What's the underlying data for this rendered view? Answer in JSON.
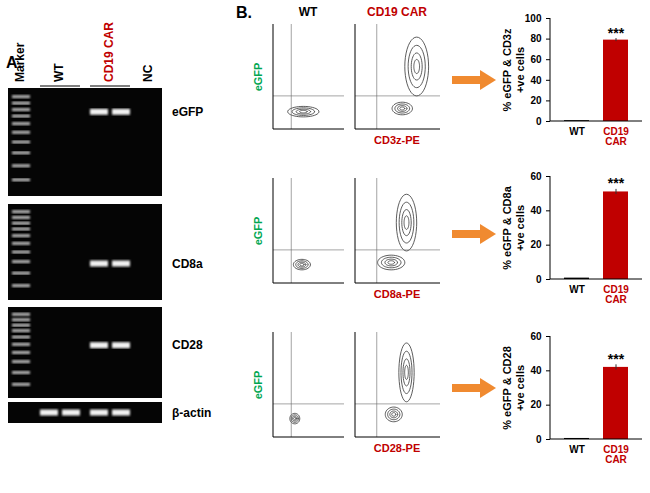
{
  "gel": {
    "panel_label": "A.",
    "lane_groups": [
      {
        "label": "Marker",
        "lanes": 1,
        "ladder": true
      },
      {
        "label": "WT",
        "lanes": 2
      },
      {
        "label": "CD19 CAR",
        "lanes": 2,
        "color": "#c00000"
      },
      {
        "label": "NC",
        "lanes": 1
      }
    ],
    "rows": [
      {
        "label": "eGFP",
        "bands": [
          1,
          0,
          0,
          1,
          1,
          0
        ]
      },
      {
        "label": "CD8a",
        "bands": [
          1,
          0,
          0,
          1,
          1,
          0
        ]
      },
      {
        "label": "CD28",
        "bands": [
          1,
          0,
          0,
          1,
          1,
          0
        ]
      },
      {
        "label": "β-actin",
        "bands": [
          0,
          1,
          1,
          1,
          1,
          0
        ]
      }
    ]
  },
  "flow": {
    "panel_label": "B.",
    "column_titles": [
      {
        "label": "WT"
      },
      {
        "label": "CD19 CAR",
        "color": "#c00000"
      }
    ],
    "y_label": {
      "text": "eGFP",
      "color": "#00a651"
    },
    "x_label_color": "#c00000",
    "xlim": [
      0,
      1
    ],
    "ylim": [
      0,
      1
    ],
    "tick_labels": false,
    "gate": {
      "x": 0.25,
      "y": 0.32
    },
    "rows": [
      {
        "x_label": "CD3z-PE",
        "plots": [
          {
            "populations": [
              {
                "x": 0.42,
                "y": 0.17,
                "sx": 0.22,
                "sy": 0.05
              }
            ]
          },
          {
            "populations": [
              {
                "x": 0.55,
                "y": 0.2,
                "sx": 0.12,
                "sy": 0.06
              },
              {
                "x": 0.72,
                "y": 0.6,
                "sx": 0.14,
                "sy": 0.28
              }
            ]
          }
        ]
      },
      {
        "x_label": "CD8a-PE",
        "plots": [
          {
            "populations": [
              {
                "x": 0.4,
                "y": 0.18,
                "sx": 0.12,
                "sy": 0.05
              }
            ]
          },
          {
            "populations": [
              {
                "x": 0.42,
                "y": 0.2,
                "sx": 0.16,
                "sy": 0.07
              },
              {
                "x": 0.6,
                "y": 0.58,
                "sx": 0.12,
                "sy": 0.27
              }
            ]
          }
        ]
      },
      {
        "x_label": "CD28-PE",
        "plots": [
          {
            "populations": [
              {
                "x": 0.3,
                "y": 0.18,
                "sx": 0.07,
                "sy": 0.05
              }
            ]
          },
          {
            "populations": [
              {
                "x": 0.45,
                "y": 0.22,
                "sx": 0.1,
                "sy": 0.07
              },
              {
                "x": 0.6,
                "y": 0.62,
                "sx": 0.09,
                "sy": 0.28
              }
            ]
          }
        ]
      }
    ]
  },
  "chart_data": [
    {
      "type": "bar",
      "y_label": "% eGFP & CD3z +ve cells",
      "categories": [
        "WT",
        "CD19 CAR"
      ],
      "values": [
        0.8,
        79
      ],
      "errors": [
        0,
        1.5
      ],
      "colors": [
        "#000000",
        "#c00000"
      ],
      "ylim": [
        0,
        100
      ],
      "yticks": [
        0,
        20,
        40,
        60,
        80,
        100
      ],
      "annotations": [
        {
          "category": "CD19 CAR",
          "text": "***"
        }
      ]
    },
    {
      "type": "bar",
      "y_label": "% eGFP & CD8a +ve cells",
      "categories": [
        "WT",
        "CD19 CAR"
      ],
      "values": [
        0.8,
        51
      ],
      "errors": [
        0,
        1.5
      ],
      "colors": [
        "#000000",
        "#c00000"
      ],
      "ylim": [
        0,
        60
      ],
      "yticks": [
        0,
        20,
        40,
        60
      ],
      "annotations": [
        {
          "category": "CD19 CAR",
          "text": "***"
        }
      ]
    },
    {
      "type": "bar",
      "y_label": "% eGFP & CD28 +ve cells",
      "categories": [
        "WT",
        "CD19 CAR"
      ],
      "values": [
        0.6,
        42
      ],
      "errors": [
        0,
        1.5
      ],
      "colors": [
        "#000000",
        "#c00000"
      ],
      "ylim": [
        0,
        60
      ],
      "yticks": [
        0,
        20,
        40,
        60
      ],
      "annotations": [
        {
          "category": "CD19 CAR",
          "text": "***"
        }
      ]
    }
  ]
}
